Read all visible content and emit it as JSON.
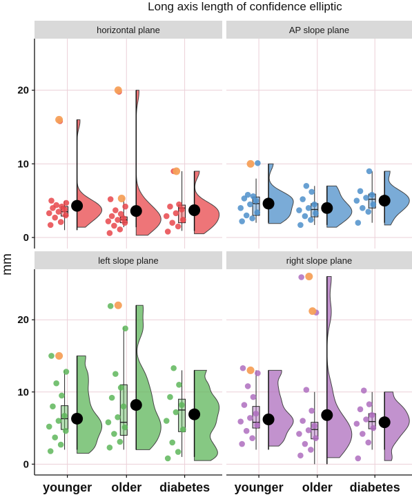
{
  "chart_data": {
    "type": "raincloud",
    "title": "Long axis length of confidence elliptic",
    "ylabel": "mm",
    "xlabel": "",
    "categories": [
      "younger",
      "older",
      "diabetes"
    ],
    "ylim": [
      -1.5,
      27
    ],
    "yticks": [
      0,
      10,
      20
    ],
    "grid": true,
    "legend": "none",
    "panels": [
      {
        "name": "horizontal plane",
        "color": "#E8474B",
        "groups": [
          {
            "category": "younger",
            "mean": 4.3,
            "box": {
              "whisker_low": 1.0,
              "q1": 2.9,
              "median": 3.5,
              "q3": 4.2,
              "whisker_high": 5.0
            },
            "points": [
              1.7,
              2.1,
              2.7,
              3.0,
              3.3,
              3.5,
              3.8,
              4.0,
              4.2,
              4.4,
              4.7,
              5.0,
              15.8
            ],
            "outliers": [
              16.0
            ],
            "density_max": 16.0
          },
          {
            "category": "older",
            "mean": 3.6,
            "box": {
              "whisker_low": 1.4,
              "q1": 2.0,
              "median": 2.4,
              "q3": 2.8,
              "whisker_high": 5.4
            },
            "points": [
              0.6,
              1.1,
              1.6,
              2.0,
              2.2,
              2.4,
              2.6,
              2.9,
              3.2,
              3.7,
              4.2,
              5.2,
              19.8
            ],
            "outliers": [
              20.0,
              5.3
            ],
            "density_max": 20.0
          },
          {
            "category": "diabetes",
            "mean": 3.7,
            "box": {
              "whisker_low": 0.9,
              "q1": 2.0,
              "median": 4.0,
              "q3": 4.4,
              "whisker_high": 9.0
            },
            "points": [
              0.8,
              1.5,
              2.0,
              2.4,
              2.9,
              3.3,
              3.8,
              4.2,
              4.5,
              9.0
            ],
            "outliers": [
              9.0
            ],
            "density_max": 9.0
          }
        ]
      },
      {
        "name": "AP slope plane",
        "color": "#4E8FCA",
        "groups": [
          {
            "category": "younger",
            "mean": 4.6,
            "box": {
              "whisker_low": 2.0,
              "q1": 3.0,
              "median": 4.6,
              "q3": 5.5,
              "whisker_high": 8.0
            },
            "points": [
              2.2,
              2.6,
              3.0,
              3.4,
              4.0,
              4.5,
              5.0,
              5.3,
              5.6,
              5.8,
              10.1
            ],
            "outliers": [
              10.0
            ],
            "density_max": 10.0
          },
          {
            "category": "older",
            "mean": 4.0,
            "box": {
              "whisker_low": 1.7,
              "q1": 2.8,
              "median": 3.8,
              "q3": 4.6,
              "whisker_high": 7.0
            },
            "points": [
              1.7,
              2.4,
              2.9,
              3.3,
              3.7,
              4.0,
              4.5,
              5.2,
              6.2,
              7.0
            ],
            "outliers": [],
            "density_max": 7.0
          },
          {
            "category": "diabetes",
            "mean": 5.0,
            "box": {
              "whisker_low": 2.0,
              "q1": 4.0,
              "median": 5.2,
              "q3": 5.9,
              "whisker_high": 9.0
            },
            "points": [
              2.0,
              3.5,
              4.0,
              4.5,
              5.0,
              5.4,
              5.8,
              6.3,
              9.0
            ],
            "outliers": [],
            "density_max": 9.0
          }
        ]
      },
      {
        "name": "left slope plane",
        "color": "#5EB65A",
        "groups": [
          {
            "category": "younger",
            "mean": 6.3,
            "box": {
              "whisker_low": 2.0,
              "q1": 4.8,
              "median": 6.3,
              "q3": 8.1,
              "whisker_high": 13.0
            },
            "points": [
              1.8,
              2.7,
              3.7,
              4.6,
              5.2,
              6.0,
              6.7,
              8.0,
              9.5,
              11.2,
              12.8,
              15.0
            ],
            "outliers": [
              15.0
            ],
            "density_max": 15.0
          },
          {
            "category": "older",
            "mean": 8.2,
            "box": {
              "whisker_low": 2.0,
              "q1": 4.0,
              "median": 5.8,
              "q3": 11.0,
              "whisker_high": 19.0
            },
            "points": [
              2.3,
              3.1,
              4.2,
              5.1,
              5.8,
              6.5,
              8.0,
              9.2,
              10.6,
              12.5,
              18.8,
              21.9
            ],
            "outliers": [
              22.0
            ],
            "density_max": 22.0
          },
          {
            "category": "diabetes",
            "mean": 6.9,
            "box": {
              "whisker_low": 1.0,
              "q1": 4.5,
              "median": 7.5,
              "q3": 9.0,
              "whisker_high": 13.0
            },
            "points": [
              0.8,
              1.7,
              3.0,
              4.8,
              6.0,
              7.2,
              8.2,
              9.3,
              11.0,
              13.3
            ],
            "outliers": [],
            "density_max": 13.0
          }
        ]
      },
      {
        "name": "right slope plane",
        "color": "#AE6DBE",
        "groups": [
          {
            "category": "younger",
            "mean": 6.2,
            "box": {
              "whisker_low": 2.0,
              "q1": 5.0,
              "median": 5.8,
              "q3": 8.0,
              "whisker_high": 13.0
            },
            "points": [
              2.8,
              3.6,
              4.6,
              5.4,
              5.9,
              6.4,
              7.0,
              8.2,
              9.3,
              10.8,
              12.6,
              13.3
            ],
            "outliers": [
              13.0
            ],
            "density_max": 13.0
          },
          {
            "category": "older",
            "mean": 6.8,
            "box": {
              "whisker_low": 0.0,
              "q1": 3.5,
              "median": 4.8,
              "q3": 5.8,
              "whisker_high": 10.0
            },
            "points": [
              1.2,
              2.0,
              2.8,
              3.6,
              4.2,
              4.7,
              5.3,
              6.0,
              7.4,
              10.3,
              21.0,
              25.9
            ],
            "outliers": [
              26.0,
              21.2
            ],
            "density_max": 26.0
          },
          {
            "category": "diabetes",
            "mean": 5.8,
            "box": {
              "whisker_low": 2.0,
              "q1": 4.9,
              "median": 5.9,
              "q3": 7.0,
              "whisker_high": 10.0
            },
            "points": [
              0.8,
              3.0,
              4.2,
              5.0,
              5.6,
              6.2,
              6.8,
              7.6,
              8.3,
              10.2
            ],
            "outliers": [],
            "density_max": 10.0
          }
        ]
      }
    ]
  }
}
